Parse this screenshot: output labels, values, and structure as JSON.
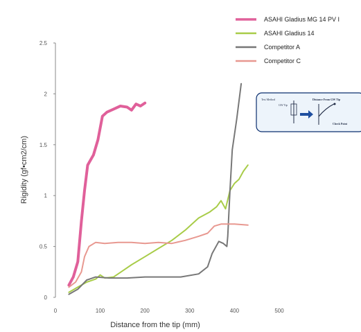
{
  "chart_data": {
    "type": "line",
    "title": "",
    "xlabel": "Distance from the tip (mm)",
    "ylabel": "Rigidity (gf•cm2/cm)",
    "xlim": [
      0,
      500
    ],
    "ylim": [
      0,
      2.5
    ],
    "xticks": [
      "0",
      "100",
      "200",
      "300",
      "400",
      "500"
    ],
    "yticks": [
      "0",
      "0.5",
      "1",
      "1.5",
      "2",
      "2.5"
    ],
    "grid": false,
    "legend_position": "top-right",
    "series": [
      {
        "name": "ASAHI Gladius MG 14 PV I",
        "color": "#e0609a",
        "width": 4,
        "points": [
          [
            30,
            0.12
          ],
          [
            40,
            0.2
          ],
          [
            50,
            0.35
          ],
          [
            58,
            0.75
          ],
          [
            65,
            1.05
          ],
          [
            72,
            1.3
          ],
          [
            85,
            1.4
          ],
          [
            95,
            1.55
          ],
          [
            105,
            1.78
          ],
          [
            115,
            1.82
          ],
          [
            130,
            1.85
          ],
          [
            145,
            1.88
          ],
          [
            160,
            1.87
          ],
          [
            170,
            1.84
          ],
          [
            180,
            1.9
          ],
          [
            190,
            1.88
          ],
          [
            200,
            1.91
          ]
        ]
      },
      {
        "name": "ASAHI Gladius 14",
        "color": "#a8cc48",
        "width": 2,
        "points": [
          [
            30,
            0.05
          ],
          [
            50,
            0.1
          ],
          [
            70,
            0.15
          ],
          [
            90,
            0.18
          ],
          [
            100,
            0.22
          ],
          [
            110,
            0.19
          ],
          [
            130,
            0.2
          ],
          [
            150,
            0.26
          ],
          [
            170,
            0.32
          ],
          [
            200,
            0.4
          ],
          [
            230,
            0.48
          ],
          [
            260,
            0.56
          ],
          [
            290,
            0.66
          ],
          [
            320,
            0.78
          ],
          [
            345,
            0.84
          ],
          [
            360,
            0.89
          ],
          [
            370,
            0.95
          ],
          [
            380,
            0.87
          ],
          [
            390,
            1.05
          ],
          [
            400,
            1.12
          ],
          [
            410,
            1.16
          ],
          [
            420,
            1.24
          ],
          [
            430,
            1.3
          ]
        ]
      },
      {
        "name": "Competitor A",
        "color": "#777777",
        "width": 2,
        "points": [
          [
            30,
            0.03
          ],
          [
            50,
            0.08
          ],
          [
            70,
            0.17
          ],
          [
            90,
            0.2
          ],
          [
            120,
            0.19
          ],
          [
            160,
            0.19
          ],
          [
            200,
            0.2
          ],
          [
            240,
            0.2
          ],
          [
            280,
            0.2
          ],
          [
            320,
            0.23
          ],
          [
            340,
            0.3
          ],
          [
            350,
            0.43
          ],
          [
            365,
            0.55
          ],
          [
            375,
            0.53
          ],
          [
            383,
            0.5
          ],
          [
            385,
            0.6
          ],
          [
            390,
            1.05
          ],
          [
            395,
            1.45
          ],
          [
            405,
            1.75
          ],
          [
            415,
            2.1
          ]
        ]
      },
      {
        "name": "Competitor C",
        "color": "#e89890",
        "width": 2,
        "points": [
          [
            30,
            0.1
          ],
          [
            45,
            0.15
          ],
          [
            58,
            0.25
          ],
          [
            65,
            0.4
          ],
          [
            75,
            0.5
          ],
          [
            90,
            0.54
          ],
          [
            110,
            0.53
          ],
          [
            140,
            0.54
          ],
          [
            170,
            0.54
          ],
          [
            200,
            0.53
          ],
          [
            230,
            0.54
          ],
          [
            260,
            0.53
          ],
          [
            290,
            0.56
          ],
          [
            320,
            0.6
          ],
          [
            340,
            0.63
          ],
          [
            355,
            0.7
          ],
          [
            370,
            0.72
          ],
          [
            400,
            0.72
          ],
          [
            430,
            0.71
          ]
        ]
      }
    ]
  },
  "inset": {
    "label_test_method": "Test Method",
    "label_distance": "Distance From GW Tip",
    "label_gw_tip": "GW Tip",
    "label_check_point": "Check Point"
  }
}
